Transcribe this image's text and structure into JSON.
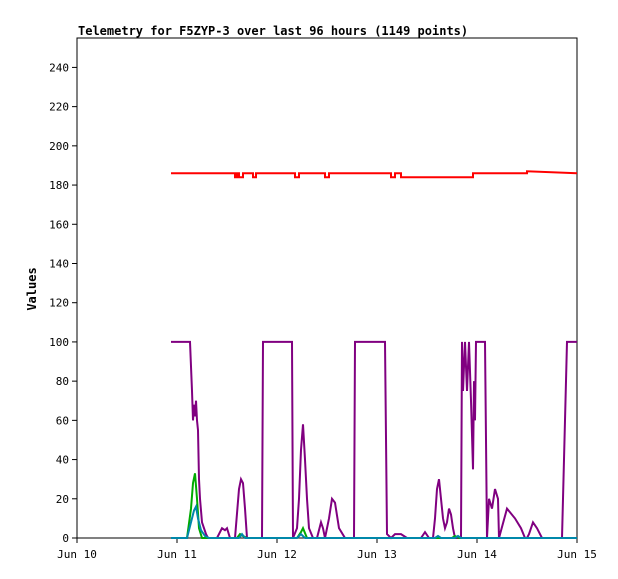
{
  "chart_data": {
    "type": "line",
    "title": "Telemetry for F5ZYP-3 over last 96 hours (1149 points)",
    "ylabel": "Values",
    "xlabel": "",
    "x_ticks": [
      "Jun 10",
      "Jun 11",
      "Jun 12",
      "Jun 13",
      "Jun 14",
      "Jun 15"
    ],
    "x_range_days": [
      10,
      15
    ],
    "ylim": [
      0,
      255
    ],
    "y_ticks": [
      0,
      20,
      40,
      60,
      80,
      100,
      120,
      140,
      160,
      180,
      200,
      220,
      240
    ],
    "grid": false,
    "legend": "none",
    "series": [
      {
        "color": "#ff0000",
        "x": [
          10.94,
          11.58,
          11.58,
          11.6,
          11.6,
          11.62,
          11.62,
          11.66,
          11.66,
          11.76,
          11.76,
          11.79,
          11.79,
          12.18,
          12.18,
          12.22,
          12.22,
          12.48,
          12.48,
          12.52,
          12.52,
          13.14,
          13.14,
          13.18,
          13.18,
          13.24,
          13.24,
          13.96,
          13.96,
          14.5,
          14.5,
          15.0
        ],
        "y": [
          186,
          186,
          184,
          184,
          186,
          186,
          184,
          184,
          186,
          186,
          184,
          184,
          186,
          186,
          184,
          184,
          186,
          186,
          184,
          184,
          186,
          186,
          184,
          184,
          186,
          186,
          184,
          184,
          186,
          186,
          187,
          186
        ]
      },
      {
        "color": "#800080",
        "x": [
          10.94,
          11.13,
          11.15,
          11.16,
          11.17,
          11.18,
          11.19,
          11.2,
          11.21,
          11.22,
          11.23,
          11.25,
          11.27,
          11.29,
          11.31,
          11.4,
          11.45,
          11.48,
          11.5,
          11.53,
          11.58,
          11.62,
          11.64,
          11.66,
          11.68,
          11.7,
          11.75,
          11.78,
          11.85,
          11.86,
          12.15,
          12.16,
          12.2,
          12.22,
          12.24,
          12.26,
          12.28,
          12.3,
          12.32,
          12.36,
          12.4,
          12.44,
          12.46,
          12.48,
          12.52,
          12.55,
          12.58,
          12.62,
          12.68,
          12.77,
          12.78,
          13.08,
          13.1,
          13.14,
          13.18,
          13.24,
          13.3,
          13.44,
          13.48,
          13.52,
          13.56,
          13.58,
          13.6,
          13.62,
          13.64,
          13.66,
          13.68,
          13.7,
          13.72,
          13.74,
          13.76,
          13.78,
          13.8,
          13.82,
          13.84,
          13.85,
          13.86,
          13.88,
          13.9,
          13.92,
          13.94,
          13.96,
          13.97,
          13.98,
          13.99,
          14.0,
          14.02,
          14.04,
          14.06,
          14.08,
          14.1,
          14.12,
          14.15,
          14.18,
          14.21,
          14.22,
          14.3,
          14.38,
          14.44,
          14.48,
          14.5,
          14.52,
          14.54,
          14.56,
          14.6,
          14.65,
          14.7,
          14.75,
          14.8,
          14.85,
          14.9,
          14.92,
          15.0
        ],
        "y": [
          100,
          100,
          75,
          60,
          68,
          62,
          70,
          60,
          55,
          30,
          20,
          8,
          5,
          2,
          0,
          0,
          5,
          4,
          5,
          0,
          0,
          25,
          30,
          28,
          15,
          0,
          0,
          0,
          0,
          100,
          100,
          0,
          5,
          20,
          45,
          58,
          40,
          20,
          5,
          0,
          0,
          8,
          5,
          0,
          10,
          20,
          18,
          5,
          0,
          0,
          100,
          100,
          2,
          0,
          2,
          2,
          0,
          0,
          3,
          0,
          0,
          10,
          25,
          30,
          20,
          10,
          5,
          8,
          15,
          12,
          5,
          0,
          0,
          0,
          0,
          100,
          75,
          100,
          75,
          100,
          70,
          35,
          80,
          60,
          100,
          100,
          100,
          100,
          100,
          100,
          0,
          20,
          15,
          25,
          20,
          0,
          15,
          10,
          5,
          0,
          0,
          2,
          5,
          8,
          5,
          0,
          0,
          0,
          0,
          0,
          100,
          100,
          100
        ]
      },
      {
        "color": "#00aa00",
        "x": [
          10.94,
          11.1,
          11.14,
          11.16,
          11.18,
          11.2,
          11.22,
          11.25,
          11.3,
          11.6,
          11.63,
          11.66,
          11.7,
          12.2,
          12.24,
          12.26,
          12.3,
          12.5,
          13.75,
          13.78,
          13.82,
          15.0
        ],
        "y": [
          0,
          0,
          15,
          28,
          33,
          20,
          5,
          0,
          0,
          0,
          2,
          1,
          0,
          0,
          3,
          5,
          0,
          0,
          0,
          1,
          0,
          0
        ]
      },
      {
        "color": "#0088aa",
        "x": [
          10.94,
          11.1,
          11.14,
          11.17,
          11.19,
          11.21,
          11.24,
          11.28,
          11.32,
          11.62,
          11.65,
          11.68,
          12.2,
          12.24,
          12.28,
          13.58,
          13.61,
          13.64,
          13.78,
          13.81,
          13.84,
          15.0
        ],
        "y": [
          0,
          0,
          8,
          14,
          16,
          10,
          4,
          1,
          0,
          0,
          2,
          0,
          0,
          2,
          0,
          0,
          1,
          0,
          0,
          1,
          0,
          0
        ]
      }
    ]
  }
}
